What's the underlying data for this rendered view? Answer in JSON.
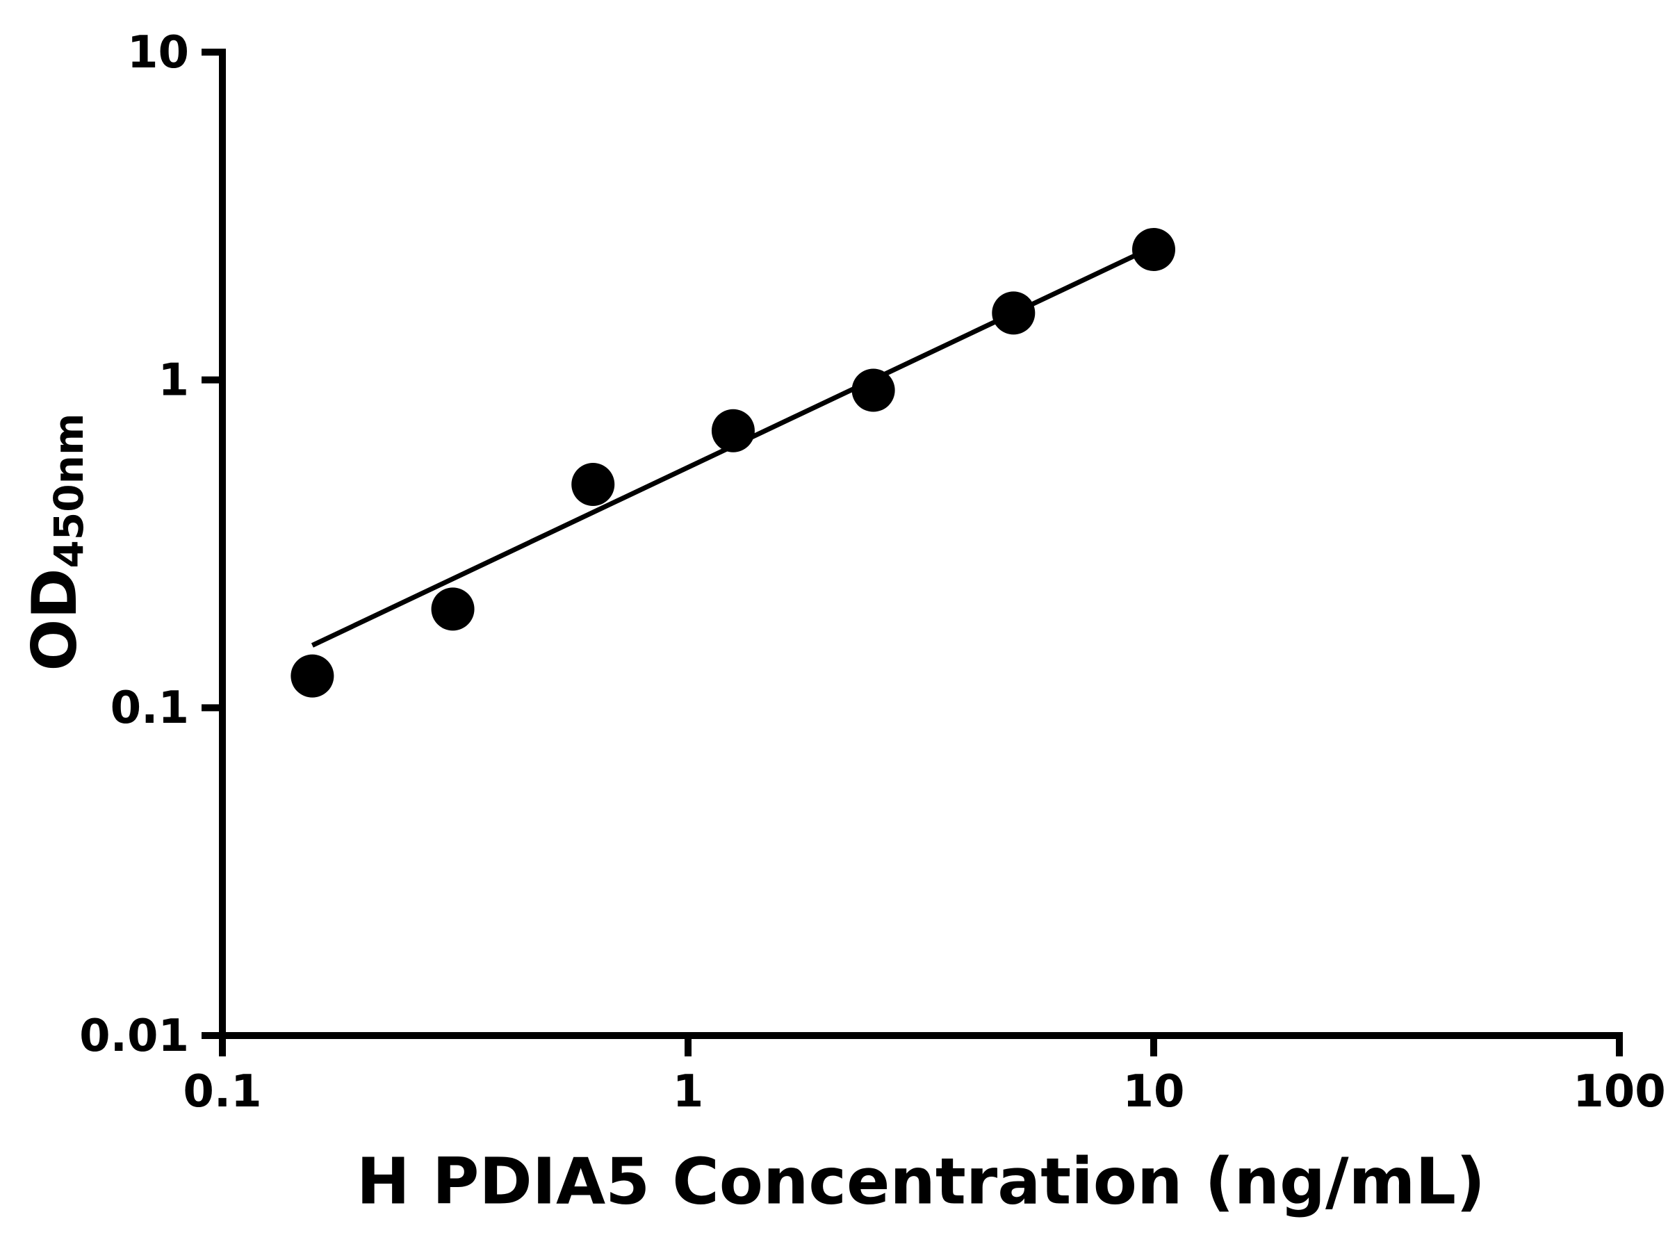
{
  "figure": {
    "background_color": "#ffffff"
  },
  "chart_data": {
    "type": "scatter",
    "title": "",
    "xlabel": "H PDIA5 Concentration (ng/mL)",
    "ylabel_main": "OD",
    "ylabel_sub": "450nm",
    "x_scale": "log",
    "y_scale": "log",
    "xlim": [
      0.1,
      100
    ],
    "ylim": [
      0.01,
      10
    ],
    "x_ticks": [
      0.1,
      1,
      10,
      100
    ],
    "y_ticks": [
      10,
      1,
      0.1,
      0.01
    ],
    "grid": false,
    "legend": false,
    "axis_color": "#000000",
    "marker_color": "#000000",
    "line_color": "#000000",
    "marker_radius": 31,
    "points": {
      "x": [
        0.156,
        0.3125,
        0.625,
        1.25,
        2.5,
        5,
        10
      ],
      "y": [
        0.125,
        0.2,
        0.48,
        0.7,
        0.93,
        1.6,
        2.5
      ]
    },
    "fit_line": {
      "x": [
        0.156,
        10
      ],
      "y": [
        0.155,
        2.55
      ]
    }
  }
}
